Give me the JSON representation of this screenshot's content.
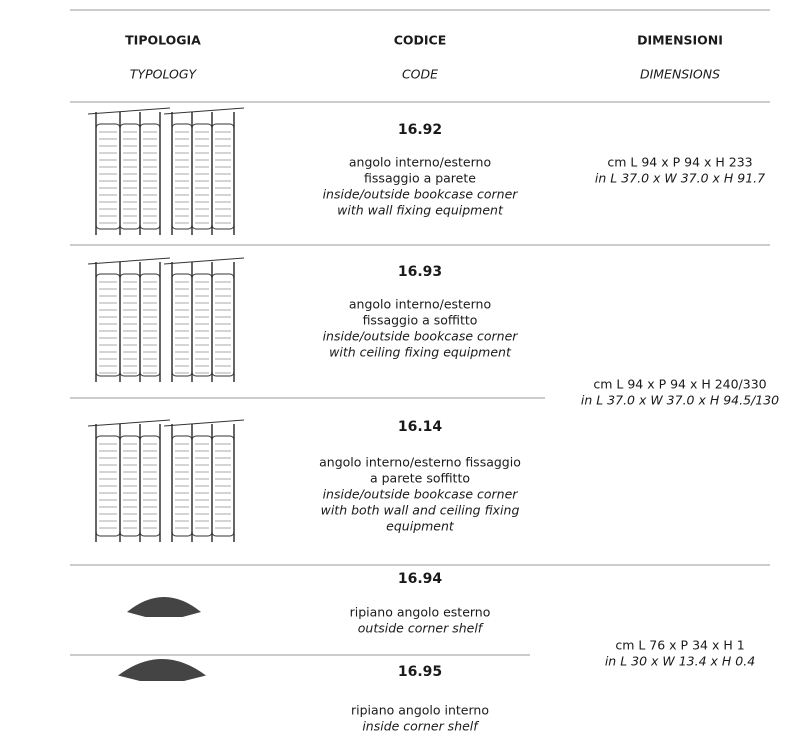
{
  "header": {
    "columns": [
      {
        "title": "TIPOLOGIA",
        "subtitle": "TYPOLOGY"
      },
      {
        "title": "CODICE",
        "subtitle": "CODE"
      },
      {
        "title": "DIMENSIONI",
        "subtitle": "DIMENSIONS"
      }
    ]
  },
  "rows": [
    {
      "code": "16.92",
      "description": [
        "angolo interno/esterno",
        "fissaggio a parete"
      ],
      "description_en": [
        "inside/outside bookcase corner",
        "with wall fixing equipment"
      ]
    },
    {
      "code": "16.93",
      "description": [
        "angolo interno/esterno",
        "fissaggio a soffitto"
      ],
      "description_en": [
        "inside/outside bookcase corner",
        "with ceiling fixing equipment"
      ]
    },
    {
      "code": "16.14",
      "description": [
        "angolo interno/esterno fissaggio",
        "a parete soffitto"
      ],
      "description_en": [
        "inside/outside bookcase corner",
        "with both wall and ceiling fixing",
        "equipment"
      ]
    },
    {
      "code": "16.94",
      "description": [
        "ripiano angolo esterno"
      ],
      "description_en": [
        "outside corner shelf"
      ]
    },
    {
      "code": "16.95",
      "description": [
        "ripiano angolo interno"
      ],
      "description_en": [
        "inside corner shelf"
      ]
    }
  ],
  "dimensions": [
    {
      "cm": "cm L 94 x P 94 x H 233",
      "in": "in L 37.0 x W 37.0 x H 91.7"
    },
    {
      "cm": "cm L 94 x P 94 x H 240/330",
      "in": "in L 37.0 x W 37.0 x H 94.5/130"
    },
    {
      "cm": "cm L 76 x P 34 x H 1",
      "in": "in L 30 x W 13.4 x H 0.4"
    }
  ]
}
